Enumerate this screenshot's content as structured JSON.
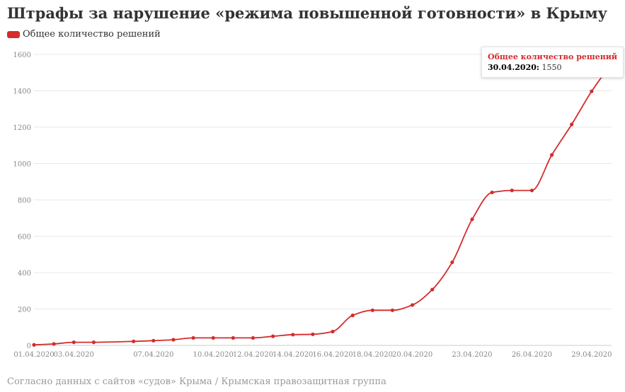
{
  "colors": {
    "series": "#d52b2b",
    "grid": "#e8e8e8",
    "axis": "#cccccc"
  },
  "chart_data": {
    "type": "line",
    "title": "Штрафы за нарушение «режима повышенной готовности» в Крыму",
    "series": [
      {
        "name": "Общее количество решений",
        "color": "#d52b2b",
        "points": [
          [
            "01.04.2020",
            3
          ],
          [
            "02.04.2020",
            8
          ],
          [
            "03.04.2020",
            17
          ],
          [
            "04.04.2020",
            17
          ],
          [
            "06.04.2020",
            22
          ],
          [
            "07.04.2020",
            26
          ],
          [
            "08.04.2020",
            31
          ],
          [
            "09.04.2020",
            41
          ],
          [
            "10.04.2020",
            41
          ],
          [
            "11.04.2020",
            41
          ],
          [
            "12.04.2020",
            41
          ],
          [
            "13.04.2020",
            50
          ],
          [
            "14.04.2020",
            59
          ],
          [
            "15.04.2020",
            61
          ],
          [
            "16.04.2020",
            76
          ],
          [
            "17.04.2020",
            165
          ],
          [
            "18.04.2020",
            193
          ],
          [
            "19.04.2020",
            193
          ],
          [
            "20.04.2020",
            222
          ],
          [
            "21.04.2020",
            307
          ],
          [
            "22.04.2020",
            457
          ],
          [
            "23.04.2020",
            693
          ],
          [
            "24.04.2020",
            841
          ],
          [
            "25.04.2020",
            852
          ],
          [
            "26.04.2020",
            852
          ],
          [
            "27.04.2020",
            1047
          ],
          [
            "28.04.2020",
            1215
          ],
          [
            "29.04.2020",
            1397
          ],
          [
            "30.04.2020",
            1550
          ]
        ]
      }
    ],
    "x_tick_labels": [
      "01.04.2020",
      "03.04.2020",
      "07.04.2020",
      "10.04.2020",
      "12.04.2020",
      "14.04.2020",
      "16.04.2020",
      "18.04.2020",
      "20.04.2020",
      "23.04.2020",
      "26.04.2020",
      "29.04.2020"
    ],
    "y_ticks": [
      0,
      200,
      400,
      600,
      800,
      1000,
      1200,
      1400,
      1600
    ],
    "ylim": [
      0,
      1600
    ],
    "grid": true,
    "legend": "top-left",
    "tooltip": {
      "series": "Общее количество решений",
      "date": "30.04.2020:",
      "value": "1550"
    }
  },
  "source": "Согласно данных с сайтов «судов» Крыма / Крымская правозащитная группа"
}
